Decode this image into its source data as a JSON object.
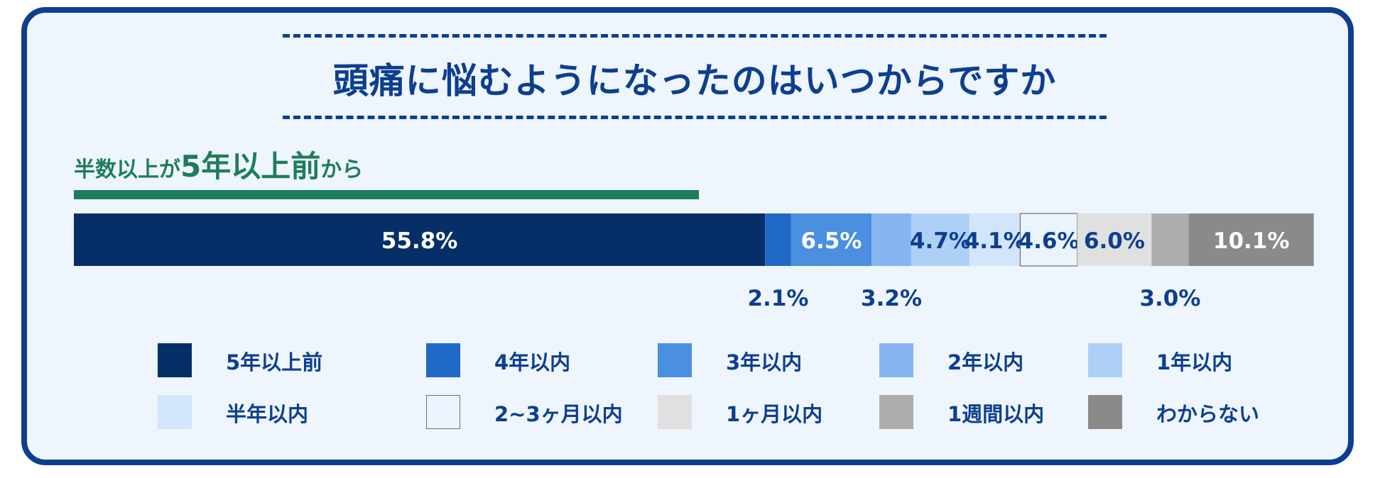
{
  "colors": {
    "navy": "#0d3f8f",
    "green": "#1e7d5c",
    "card_bg": "#eef5fd"
  },
  "header": {
    "title": "頭痛に悩むようになったのはいつからですか",
    "subtitle_prefix": "半数以上が",
    "subtitle_emphasis": "5年以上前",
    "subtitle_suffix": "から"
  },
  "chart_data": {
    "type": "bar",
    "orientation": "horizontal",
    "stacked": true,
    "title": "頭痛に悩むようになったのはいつからですか",
    "unit": "%",
    "xlim": [
      0,
      100
    ],
    "categories": [
      "5年以上前",
      "4年以内",
      "3年以内",
      "2年以内",
      "1年以内",
      "半年以内",
      "2~3ヶ月以内",
      "1ヶ月以内",
      "1週間以内",
      "わからない"
    ],
    "values": [
      55.8,
      2.1,
      6.5,
      3.2,
      4.7,
      4.1,
      4.6,
      6.0,
      3.0,
      10.1
    ],
    "labels": [
      "55.8%",
      "2.1%",
      "6.5%",
      "3.2%",
      "4.7%",
      "4.1%",
      "4.6%",
      "6.0%",
      "3.0%",
      "10.1%"
    ],
    "label_position": [
      "inside",
      "below",
      "inside",
      "below",
      "inside",
      "inside",
      "inside",
      "inside",
      "below",
      "inside"
    ],
    "colors": [
      "#062f68",
      "#2169c6",
      "#4a8fe0",
      "#86b5f1",
      "#aed0f7",
      "#d2e5fb",
      "#ebf4fd",
      "#e0e0e0",
      "#adadad",
      "#8a8a8a"
    ],
    "label_colors": [
      "#ffffff",
      "#0d3f8f",
      "#ffffff",
      "#0d3f8f",
      "#0d3f8f",
      "#0d3f8f",
      "#0d3f8f",
      "#0d3f8f",
      "#0d3f8f",
      "#ffffff"
    ],
    "legend": [
      "5年以上前",
      "4年以内",
      "3年以内",
      "2年以内",
      "1年以内",
      "半年以内",
      "2~3ヶ月以内",
      "1ヶ月以内",
      "1週間以内",
      "わからない"
    ],
    "legend_placement": "bottom"
  }
}
